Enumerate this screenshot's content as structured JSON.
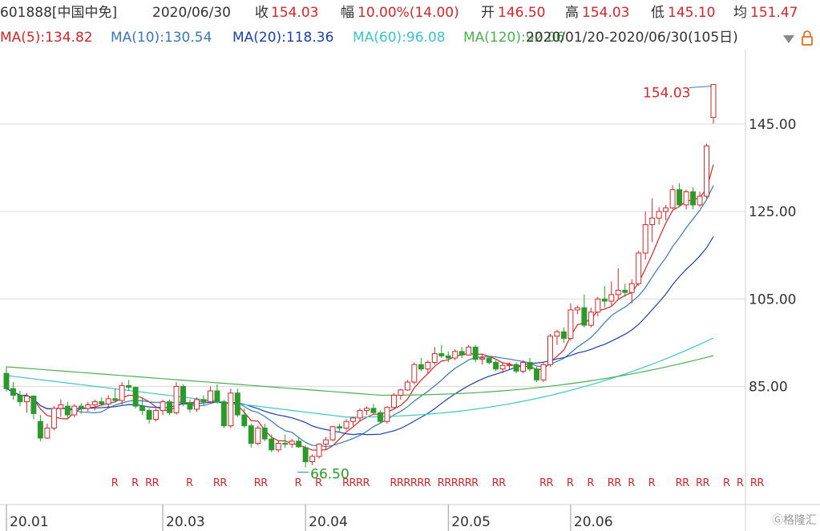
{
  "header": {
    "symbol": "601888[中国中免]",
    "date": "2020/06/30",
    "close_label": "收",
    "close_value": "154.03",
    "change_label": "幅",
    "change_value": "10.00%(14.00)",
    "open_label": "开",
    "open_value": "146.50",
    "high_label": "高",
    "high_value": "154.03",
    "low_label": "低",
    "low_value": "145.10",
    "avg_label": "均",
    "avg_value": "151.47"
  },
  "ma_bar": {
    "ma5": "MA(5):134.82",
    "ma10": "MA(10):130.54",
    "ma20": "MA(20):118.36",
    "ma60": "MA(60):96.08",
    "ma120": "MA(120):92.06",
    "range": "2020/01/20-2020/06/30(105日)"
  },
  "watermark": "格隆汇",
  "colors": {
    "up": "#d4272b",
    "down": "#2b9a2b",
    "ma5": "#d4272b",
    "ma10": "#3a78b8",
    "ma20": "#1f3fb0",
    "ma60": "#3cc6cc",
    "ma120": "#4caf50"
  },
  "chart_data": {
    "type": "candlestick",
    "y_ticks": [
      85.0,
      105.0,
      125.0,
      145.0
    ],
    "y_tick_labels": [
      "85.00",
      "105.00",
      "125.00",
      "145.00"
    ],
    "ylim": [
      58,
      162
    ],
    "x_tick_labels": [
      {
        "label": "20.01",
        "index": 0
      },
      {
        "label": "20.03",
        "index": 23
      },
      {
        "label": "20.04",
        "index": 44
      },
      {
        "label": "20.05",
        "index": 65
      },
      {
        "label": "20.06",
        "index": 83
      }
    ],
    "annotations": [
      {
        "text": "154.03",
        "index": 104,
        "value": 154.03
      },
      {
        "text": "66.50",
        "index": 44,
        "value": 66.5
      }
    ],
    "r_marks_text": "R",
    "r_mark_indices": [
      16,
      19,
      21,
      22,
      27,
      31,
      32,
      37,
      38,
      43,
      46,
      50,
      51,
      52,
      53,
      57,
      58,
      59,
      60,
      61,
      62,
      64,
      65,
      66,
      67,
      68,
      69,
      72,
      73,
      79,
      80,
      83,
      86,
      89,
      90,
      92,
      95,
      99,
      100,
      102,
      103,
      106,
      108,
      110,
      111
    ],
    "ohlc": [
      [
        88.0,
        89.5,
        83.8,
        84.5
      ],
      [
        84.5,
        86.0,
        82.0,
        83.0
      ],
      [
        83.0,
        84.0,
        80.5,
        81.5
      ],
      [
        81.5,
        83.5,
        79.0,
        82.8
      ],
      [
        82.8,
        83.0,
        77.5,
        78.8
      ],
      [
        77.0,
        78.5,
        72.5,
        73.2
      ],
      [
        73.2,
        76.5,
        73.0,
        75.5
      ],
      [
        75.5,
        80.5,
        75.0,
        80.0
      ],
      [
        80.0,
        82.0,
        78.0,
        80.8
      ],
      [
        80.5,
        81.5,
        77.5,
        78.5
      ],
      [
        78.5,
        81.0,
        78.0,
        80.5
      ],
      [
        80.5,
        81.2,
        78.8,
        80.0
      ],
      [
        80.0,
        81.5,
        79.2,
        80.8
      ],
      [
        80.8,
        82.0,
        79.5,
        81.5
      ],
      [
        81.5,
        82.5,
        80.5,
        81.0
      ],
      [
        81.0,
        83.0,
        80.2,
        82.2
      ],
      [
        82.2,
        84.5,
        81.5,
        81.8
      ],
      [
        81.8,
        86.0,
        80.8,
        85.2
      ],
      [
        85.2,
        86.5,
        84.0,
        84.8
      ],
      [
        84.8,
        85.0,
        80.0,
        80.5
      ],
      [
        80.5,
        82.5,
        78.5,
        79.5
      ],
      [
        79.5,
        80.0,
        76.5,
        77.5
      ],
      [
        77.5,
        80.0,
        77.0,
        79.5
      ],
      [
        79.5,
        82.0,
        78.5,
        81.5
      ],
      [
        81.5,
        82.0,
        78.5,
        79.0
      ],
      [
        79.0,
        86.0,
        78.5,
        85.0
      ],
      [
        85.0,
        85.5,
        80.5,
        81.2
      ],
      [
        81.2,
        82.0,
        79.0,
        79.8
      ],
      [
        79.8,
        82.5,
        79.2,
        82.0
      ],
      [
        82.0,
        83.0,
        80.5,
        81.5
      ],
      [
        81.5,
        85.0,
        81.0,
        84.0
      ],
      [
        84.0,
        85.5,
        81.0,
        81.5
      ],
      [
        81.5,
        82.0,
        75.5,
        76.0
      ],
      [
        76.0,
        84.5,
        75.5,
        83.5
      ],
      [
        83.5,
        84.5,
        78.0,
        78.5
      ],
      [
        78.5,
        80.0,
        75.5,
        76.0
      ],
      [
        76.0,
        76.5,
        71.0,
        72.0
      ],
      [
        72.0,
        76.0,
        71.5,
        75.5
      ],
      [
        75.5,
        76.5,
        72.5,
        73.0
      ],
      [
        73.0,
        74.0,
        70.0,
        70.5
      ],
      [
        70.5,
        72.5,
        70.0,
        72.0
      ],
      [
        72.0,
        74.0,
        71.0,
        71.8
      ],
      [
        71.8,
        73.0,
        71.0,
        72.5
      ],
      [
        72.5,
        73.5,
        71.0,
        71.2
      ],
      [
        71.0,
        71.5,
        66.5,
        67.8
      ],
      [
        67.8,
        69.5,
        67.0,
        69.0
      ],
      [
        69.0,
        72.0,
        68.5,
        71.8
      ],
      [
        71.8,
        73.5,
        70.5,
        72.8
      ],
      [
        72.8,
        76.0,
        72.5,
        75.8
      ],
      [
        75.8,
        76.5,
        74.5,
        75.5
      ],
      [
        75.5,
        77.5,
        75.0,
        77.0
      ],
      [
        77.0,
        78.0,
        76.0,
        77.8
      ],
      [
        77.8,
        80.0,
        77.0,
        79.5
      ],
      [
        79.5,
        80.5,
        78.5,
        80.0
      ],
      [
        80.0,
        81.0,
        78.5,
        79.0
      ],
      [
        79.0,
        79.5,
        76.5,
        77.0
      ],
      [
        77.0,
        80.5,
        76.5,
        80.2
      ],
      [
        80.2,
        83.5,
        80.0,
        83.0
      ],
      [
        83.0,
        84.5,
        82.0,
        84.2
      ],
      [
        84.2,
        86.5,
        84.0,
        86.0
      ],
      [
        86.0,
        90.5,
        85.5,
        90.0
      ],
      [
        90.0,
        91.5,
        88.5,
        89.0
      ],
      [
        89.0,
        91.0,
        88.0,
        90.5
      ],
      [
        90.5,
        94.0,
        90.0,
        92.5
      ],
      [
        92.5,
        94.5,
        91.5,
        92.0
      ],
      [
        92.0,
        93.0,
        90.5,
        91.5
      ],
      [
        91.5,
        93.5,
        91.0,
        93.0
      ],
      [
        93.0,
        94.0,
        91.5,
        92.2
      ],
      [
        92.2,
        94.5,
        92.0,
        94.0
      ],
      [
        94.0,
        94.5,
        90.5,
        91.2
      ],
      [
        91.2,
        92.5,
        90.0,
        91.5
      ],
      [
        91.5,
        92.0,
        90.0,
        90.5
      ],
      [
        90.5,
        91.0,
        88.5,
        89.0
      ],
      [
        89.0,
        90.5,
        88.0,
        89.8
      ],
      [
        89.8,
        90.5,
        89.0,
        90.0
      ],
      [
        90.0,
        90.5,
        88.0,
        88.5
      ],
      [
        88.5,
        91.0,
        88.0,
        90.5
      ],
      [
        90.5,
        91.5,
        88.5,
        89.0
      ],
      [
        89.0,
        89.5,
        86.0,
        86.5
      ],
      [
        86.5,
        90.5,
        86.0,
        90.0
      ],
      [
        90.0,
        97.0,
        89.5,
        96.5
      ],
      [
        96.5,
        98.0,
        94.5,
        97.5
      ],
      [
        97.5,
        98.5,
        95.0,
        96.0
      ],
      [
        96.0,
        104.0,
        95.5,
        102.5
      ],
      [
        102.5,
        103.5,
        101.5,
        103.0
      ],
      [
        103.0,
        106.0,
        98.5,
        99.0
      ],
      [
        99.0,
        103.0,
        98.5,
        102.0
      ],
      [
        102.0,
        105.5,
        101.0,
        105.0
      ],
      [
        105.0,
        108.0,
        103.0,
        104.5
      ],
      [
        104.5,
        109.0,
        103.5,
        106.0
      ],
      [
        106.0,
        112.0,
        105.0,
        107.0
      ],
      [
        107.0,
        108.5,
        105.5,
        106.5
      ],
      [
        106.5,
        109.5,
        104.0,
        108.5
      ],
      [
        108.5,
        116.0,
        108.0,
        115.5
      ],
      [
        115.5,
        125.0,
        114.0,
        122.0
      ],
      [
        122.0,
        128.0,
        118.0,
        123.5
      ],
      [
        123.5,
        126.0,
        122.0,
        125.0
      ],
      [
        125.0,
        126.5,
        123.0,
        125.8
      ],
      [
        125.8,
        131.0,
        125.5,
        130.0
      ],
      [
        130.0,
        131.5,
        126.0,
        126.5
      ],
      [
        126.5,
        130.0,
        125.5,
        129.5
      ],
      [
        129.5,
        130.5,
        125.5,
        126.5
      ],
      [
        126.5,
        129.5,
        126.0,
        128.5
      ],
      [
        128.5,
        140.5,
        128.0,
        140.0
      ],
      [
        146.5,
        154.03,
        145.1,
        154.03
      ]
    ],
    "ma5_end": 134.82,
    "ma10_end": 130.54,
    "ma20_end": 118.36,
    "ma60_end": 96.08,
    "ma120_end": 92.06
  }
}
